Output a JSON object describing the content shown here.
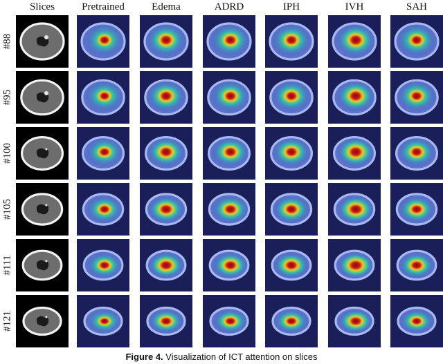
{
  "columns": [
    "Slices",
    "Pretrained",
    "Edema",
    "ADRD",
    "IPH",
    "IVH",
    "SAH"
  ],
  "rows": [
    "#88",
    "#95",
    "#100",
    "#105",
    "#111",
    "#121"
  ],
  "caption": {
    "label": "Figure 4.",
    "text": "Visualization of ICT attention on slices"
  },
  "colors": {
    "scan_background": "#000000",
    "heatmap_cold": "#3b4fd8",
    "heatmap_mid": "#2fd0a0",
    "heatmap_warm": "#f0d020",
    "heatmap_hot": "#8a0a0a"
  }
}
